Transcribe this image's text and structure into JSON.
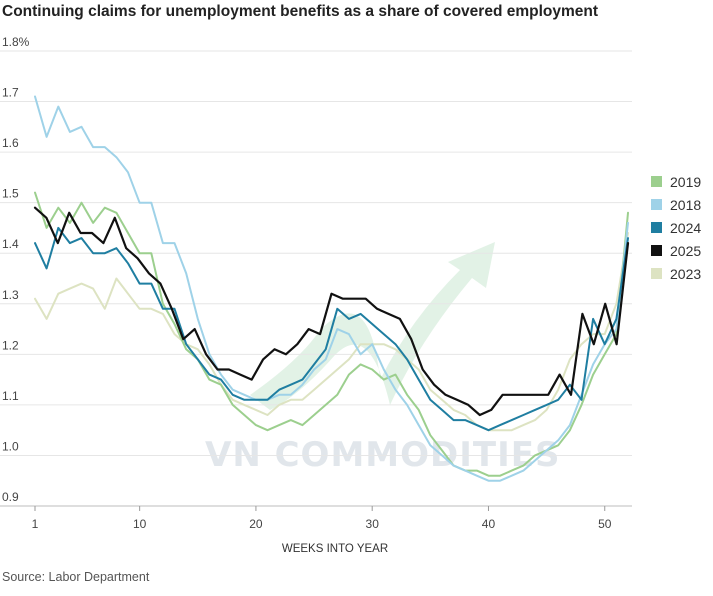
{
  "title": "Continuing claims for unemployment benefits as a share of covered employment",
  "source": "Source: Labor Department",
  "watermark": "VN COMMODITIES",
  "chart_data": {
    "type": "line",
    "xlabel": "WEEKS INTO YEAR",
    "ylabel": "",
    "xlim": [
      1,
      52
    ],
    "ylim": [
      0.9,
      1.8
    ],
    "x_ticks": [
      1,
      10,
      20,
      30,
      40,
      50
    ],
    "y_ticks": [
      "0.9",
      "1.0",
      "1.1",
      "1.2",
      "1.3",
      "1.4",
      "1.5",
      "1.6",
      "1.7",
      "1.8%"
    ],
    "y_tick_values": [
      0.9,
      1.0,
      1.1,
      1.2,
      1.3,
      1.4,
      1.5,
      1.6,
      1.7,
      1.8
    ],
    "grid": "horizontal",
    "legend_position": "right",
    "series": [
      {
        "name": "2019",
        "color": "#9ccf8e",
        "values": [
          1.52,
          1.45,
          1.49,
          1.46,
          1.5,
          1.46,
          1.49,
          1.48,
          1.44,
          1.4,
          1.4,
          1.3,
          1.26,
          1.21,
          1.19,
          1.15,
          1.14,
          1.1,
          1.08,
          1.06,
          1.05,
          1.06,
          1.07,
          1.06,
          1.08,
          1.1,
          1.12,
          1.16,
          1.18,
          1.17,
          1.15,
          1.16,
          1.12,
          1.09,
          1.04,
          1.01,
          0.98,
          0.97,
          0.97,
          0.96,
          0.96,
          0.97,
          0.98,
          1.0,
          1.01,
          1.02,
          1.05,
          1.1,
          1.16,
          1.2,
          1.24,
          1.48
        ]
      },
      {
        "name": "2018",
        "color": "#9fd2e8",
        "values": [
          1.71,
          1.63,
          1.69,
          1.64,
          1.65,
          1.61,
          1.61,
          1.59,
          1.56,
          1.5,
          1.5,
          1.42,
          1.42,
          1.36,
          1.27,
          1.2,
          1.16,
          1.13,
          1.12,
          1.11,
          1.11,
          1.12,
          1.12,
          1.14,
          1.17,
          1.19,
          1.25,
          1.24,
          1.2,
          1.22,
          1.17,
          1.13,
          1.1,
          1.06,
          1.02,
          1.0,
          0.98,
          0.97,
          0.96,
          0.95,
          0.95,
          0.96,
          0.97,
          0.99,
          1.01,
          1.03,
          1.06,
          1.12,
          1.18,
          1.22,
          1.25,
          1.46
        ]
      },
      {
        "name": "2024",
        "color": "#1f7ea1",
        "values": [
          1.42,
          1.37,
          1.45,
          1.42,
          1.43,
          1.4,
          1.4,
          1.41,
          1.38,
          1.34,
          1.34,
          1.29,
          1.29,
          1.22,
          1.19,
          1.16,
          1.15,
          1.12,
          1.11,
          1.11,
          1.11,
          1.13,
          1.14,
          1.15,
          1.18,
          1.21,
          1.29,
          1.27,
          1.28,
          1.26,
          1.24,
          1.22,
          1.19,
          1.15,
          1.11,
          1.09,
          1.07,
          1.07,
          1.06,
          1.05,
          1.06,
          1.07,
          1.08,
          1.09,
          1.1,
          1.11,
          1.14,
          1.11,
          1.27,
          1.22,
          1.27,
          1.43
        ]
      },
      {
        "name": "2025",
        "color": "#111111",
        "values": [
          1.49,
          1.47,
          1.42,
          1.48,
          1.44,
          1.44,
          1.42,
          1.47,
          1.41,
          1.39,
          1.36,
          1.34,
          1.29,
          1.23,
          1.25,
          1.2,
          1.17,
          1.17,
          1.16,
          1.15,
          1.19,
          1.21,
          1.2,
          1.22,
          1.25,
          1.24,
          1.32,
          1.31,
          1.31,
          1.31,
          1.29,
          1.28,
          1.27,
          1.23,
          1.17,
          1.14,
          1.12,
          1.11,
          1.1,
          1.08,
          1.09,
          1.12,
          1.12,
          1.12,
          1.12,
          1.12,
          1.16,
          1.12,
          1.28,
          1.22,
          1.3,
          1.22,
          1.42
        ]
      },
      {
        "name": "2023",
        "color": "#dde3c2",
        "values": [
          1.31,
          1.27,
          1.32,
          1.33,
          1.34,
          1.33,
          1.29,
          1.35,
          1.32,
          1.29,
          1.29,
          1.28,
          1.24,
          1.22,
          1.21,
          1.18,
          1.14,
          1.11,
          1.1,
          1.09,
          1.08,
          1.1,
          1.11,
          1.11,
          1.13,
          1.15,
          1.17,
          1.19,
          1.22,
          1.22,
          1.22,
          1.21,
          1.19,
          1.17,
          1.13,
          1.11,
          1.09,
          1.08,
          1.06,
          1.05,
          1.05,
          1.05,
          1.06,
          1.07,
          1.09,
          1.13,
          1.19,
          1.22,
          1.24,
          1.24,
          1.3,
          1.44
        ]
      }
    ],
    "legend_order": [
      "2019",
      "2018",
      "2024",
      "2025",
      "2023"
    ]
  }
}
